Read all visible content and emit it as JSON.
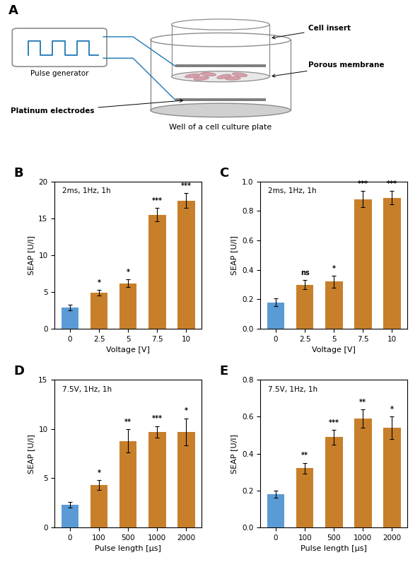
{
  "chart_data": [
    {
      "type": "diagram",
      "title": "A",
      "annotations": [
        "Pulse generator",
        "Platinum electrodes",
        "Cell insert",
        "Porous membrane",
        "Well of a cell culture plate"
      ]
    },
    {
      "type": "bar",
      "title": "B",
      "subtitle": "2ms, 1Hz, 1h",
      "xlabel": "Voltage [V]",
      "ylabel": "SEAP [U/l]",
      "categories": [
        "0",
        "2.5",
        "5",
        "7.5",
        "10"
      ],
      "values": [
        2.9,
        4.9,
        6.2,
        15.5,
        17.4
      ],
      "errors": [
        0.4,
        0.35,
        0.55,
        0.9,
        1.0
      ],
      "colors": [
        "#5B9BD5",
        "#C87F2A",
        "#C87F2A",
        "#C87F2A",
        "#C87F2A"
      ],
      "annotations": [
        null,
        "*",
        "*",
        "***",
        "***"
      ],
      "ylim": [
        0,
        20
      ],
      "yticks": [
        0,
        5,
        10,
        15,
        20
      ]
    },
    {
      "type": "bar",
      "title": "C",
      "subtitle": "2ms, 1Hz, 1h",
      "xlabel": "Voltage [V]",
      "ylabel": "SEAP [U/l]",
      "categories": [
        "0",
        "2.5",
        "5",
        "7.5",
        "10"
      ],
      "values": [
        0.18,
        0.3,
        0.32,
        0.88,
        0.89
      ],
      "errors": [
        0.025,
        0.03,
        0.04,
        0.055,
        0.045
      ],
      "colors": [
        "#5B9BD5",
        "#C87F2A",
        "#C87F2A",
        "#C87F2A",
        "#C87F2A"
      ],
      "annotations": [
        null,
        "ns",
        "*",
        "***",
        "***"
      ],
      "ylim": [
        0,
        1.0
      ],
      "yticks": [
        {
          "value": 0.0,
          "label": "0.0"
        },
        0.2,
        0.4,
        0.6,
        0.8,
        {
          "value": 1.0,
          "label": "1.0"
        }
      ]
    },
    {
      "type": "bar",
      "title": "D",
      "subtitle": "7.5V, 1Hz, 1h",
      "xlabel": "Pulse length [μs]",
      "ylabel": "SEAP [U/l]",
      "categories": [
        "0",
        "100",
        "500",
        "1000",
        "2000"
      ],
      "values": [
        2.3,
        4.3,
        8.8,
        9.7,
        9.7
      ],
      "errors": [
        0.3,
        0.5,
        1.2,
        0.6,
        1.4
      ],
      "colors": [
        "#5B9BD5",
        "#C87F2A",
        "#C87F2A",
        "#C87F2A",
        "#C87F2A"
      ],
      "annotations": [
        null,
        "*",
        "**",
        "***",
        "*"
      ],
      "ylim": [
        0,
        15
      ],
      "yticks": [
        0,
        5,
        10,
        15
      ]
    },
    {
      "type": "bar",
      "title": "E",
      "subtitle": "7.5V, 1Hz, 1h",
      "xlabel": "Pulse length [μs]",
      "ylabel": "SEAP [U/l]",
      "categories": [
        "0",
        "100",
        "500",
        "1000",
        "2000"
      ],
      "values": [
        0.18,
        0.32,
        0.49,
        0.59,
        0.54
      ],
      "errors": [
        0.02,
        0.03,
        0.04,
        0.05,
        0.06
      ],
      "colors": [
        "#5B9BD5",
        "#C87F2A",
        "#C87F2A",
        "#C87F2A",
        "#C87F2A"
      ],
      "annotations": [
        null,
        "**",
        "***",
        "**",
        "*"
      ],
      "ylim": [
        0,
        0.8
      ],
      "yticks": [
        {
          "value": 0.0,
          "label": "0.0"
        },
        0.2,
        0.4,
        0.6,
        0.8
      ]
    }
  ]
}
